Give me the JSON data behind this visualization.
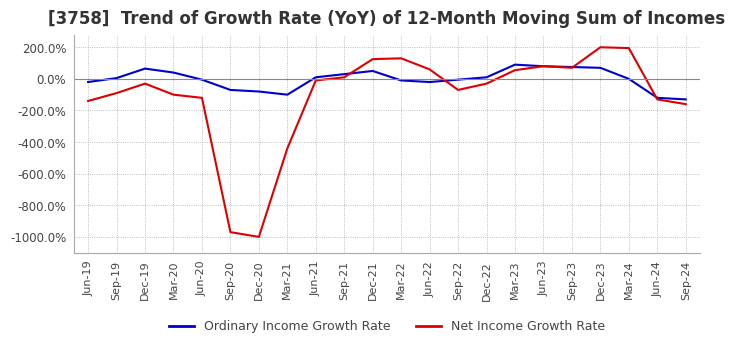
{
  "title": "[3758]  Trend of Growth Rate (YoY) of 12-Month Moving Sum of Incomes",
  "title_fontsize": 12,
  "ylim": [
    -1100,
    280
  ],
  "yticks": [
    200,
    0,
    -200,
    -400,
    -600,
    -800,
    -1000
  ],
  "background_color": "#ffffff",
  "plot_bg_color": "#ffffff",
  "grid_color": "#aaaaaa",
  "line1_color": "#0000cc",
  "line2_color": "#dd0000",
  "line1_label": "Ordinary Income Growth Rate",
  "line2_label": "Net Income Growth Rate",
  "x_labels": [
    "Jun-19",
    "Sep-19",
    "Dec-19",
    "Mar-20",
    "Jun-20",
    "Sep-20",
    "Dec-20",
    "Mar-21",
    "Jun-21",
    "Sep-21",
    "Dec-21",
    "Mar-22",
    "Jun-22",
    "Sep-22",
    "Dec-22",
    "Mar-23",
    "Jun-23",
    "Sep-23",
    "Dec-23",
    "Mar-24",
    "Jun-24",
    "Sep-24"
  ],
  "ordinary_income": [
    -20,
    5,
    65,
    40,
    -5,
    -70,
    -80,
    -100,
    10,
    30,
    50,
    -10,
    -20,
    -5,
    10,
    90,
    80,
    75,
    70,
    0,
    -120,
    -130
  ],
  "net_income": [
    -140,
    -90,
    -30,
    -100,
    -120,
    -970,
    -1000,
    -440,
    -10,
    10,
    125,
    130,
    60,
    -70,
    -30,
    55,
    80,
    70,
    200,
    195,
    -130,
    -160
  ]
}
